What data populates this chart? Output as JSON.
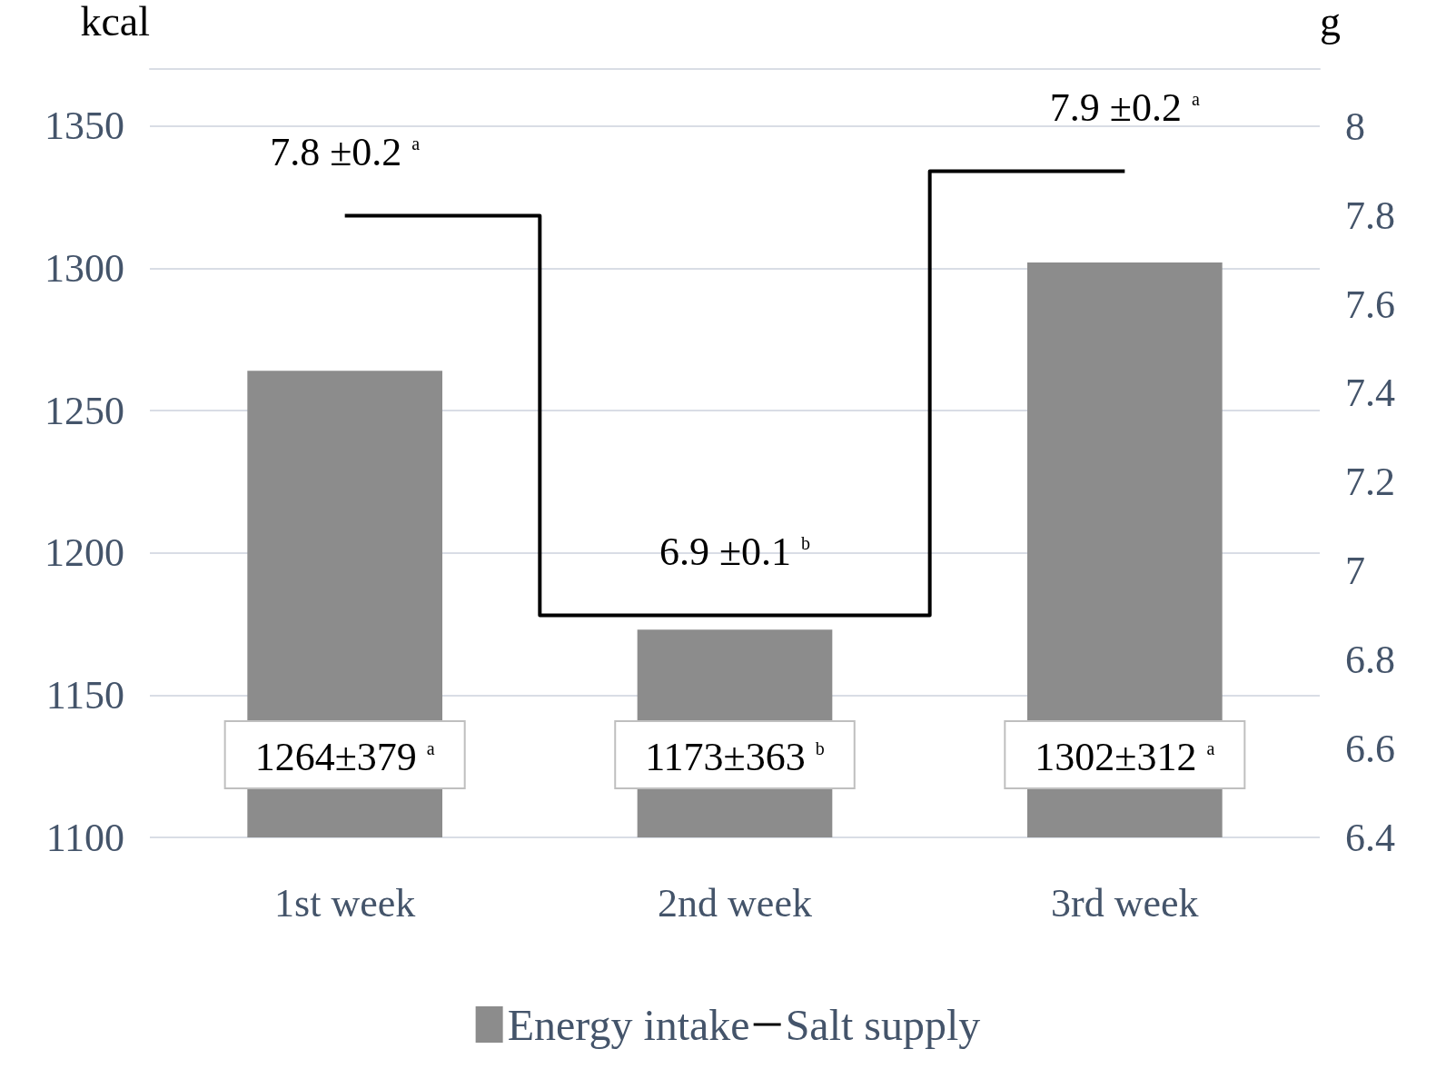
{
  "chart_data": {
    "type": "bar",
    "ylabel": "kcal",
    "y2label": "g",
    "categories": [
      "1st week",
      "2nd week",
      "3rd week"
    ],
    "series": [
      {
        "name": "Energy intake",
        "color": "#8c8c8c",
        "values": [
          1264,
          1173,
          1302
        ],
        "value_labels": [
          "1264±379 $^{a}$",
          "1173±363 $^{b}$",
          "1302±312 $^{a}$"
        ]
      },
      {
        "name": "Salt supply",
        "type": "step",
        "axis": "y2",
        "color": "#000000",
        "values": [
          7.8,
          6.9,
          7.9
        ],
        "value_labels": [
          "7.8 ±0.2 $^{a}$",
          "6.9 ±0.1 $^{b}$",
          "7.9 ±0.2 $^{a}$"
        ]
      }
    ],
    "ylim": [
      1100,
      1370
    ],
    "yticks": [
      1100,
      1150,
      1200,
      1250,
      1300,
      1350
    ],
    "y2lim": [
      6.4,
      8.13
    ],
    "y2ticks": [
      6.4,
      6.6,
      6.8,
      7,
      7.2,
      7.4,
      7.6,
      7.8,
      8
    ],
    "grid": "y",
    "legend": "bottom",
    "marker": "none",
    "line_style": "solid"
  }
}
